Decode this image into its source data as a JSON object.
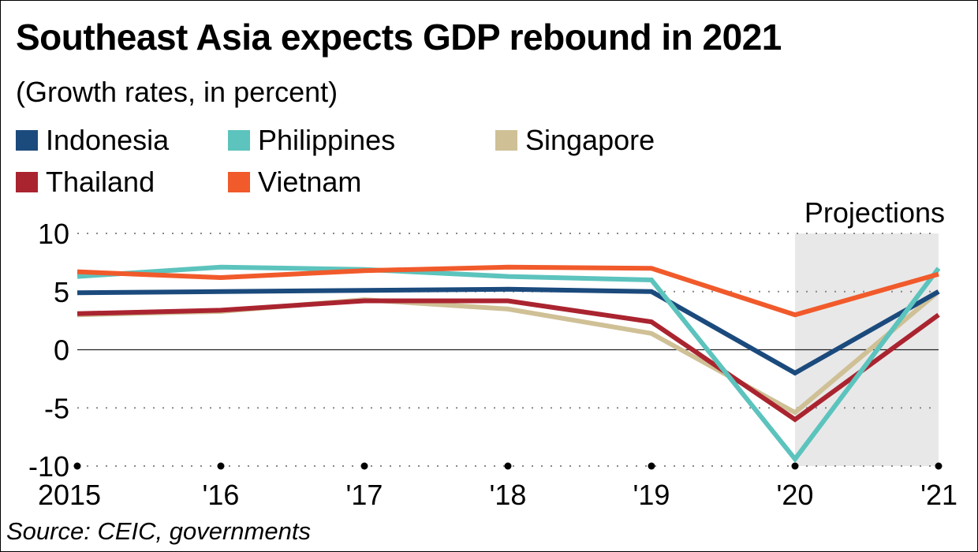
{
  "chart_data": {
    "type": "line",
    "title": "Southeast Asia expects GDP rebound in 2021",
    "subtitle": "(Growth rates, in percent)",
    "source": "Source: CEIC, governments",
    "annotation": "Projections",
    "projection_range": [
      "'20",
      "'21"
    ],
    "x": [
      "2015",
      "'16",
      "'17",
      "'18",
      "'19",
      "'20",
      "'21"
    ],
    "ylim": [
      -10,
      10
    ],
    "yticks": [
      "10",
      "5",
      "0",
      "-5",
      "-10"
    ],
    "ytick_values": [
      10,
      5,
      0,
      -5,
      -10
    ],
    "grid": "dotted horizontal",
    "legend_position": "top",
    "series": [
      {
        "name": "Indonesia",
        "color": "#1b4a7d",
        "values": [
          4.9,
          5.0,
          5.1,
          5.2,
          5.0,
          -2.0,
          5.0
        ]
      },
      {
        "name": "Philippines",
        "color": "#5cc3bd",
        "values": [
          6.3,
          7.1,
          6.9,
          6.3,
          6.0,
          -9.4,
          7.0
        ]
      },
      {
        "name": "Singapore",
        "color": "#cfc096",
        "values": [
          3.0,
          3.3,
          4.3,
          3.5,
          1.4,
          -5.4,
          5.0
        ]
      },
      {
        "name": "Thailand",
        "color": "#aa2430",
        "values": [
          3.1,
          3.4,
          4.2,
          4.2,
          2.4,
          -6.0,
          3.0
        ]
      },
      {
        "name": "Vietnam",
        "color": "#f15a2b",
        "values": [
          6.7,
          6.2,
          6.8,
          7.1,
          7.0,
          3.0,
          6.5
        ]
      }
    ]
  }
}
